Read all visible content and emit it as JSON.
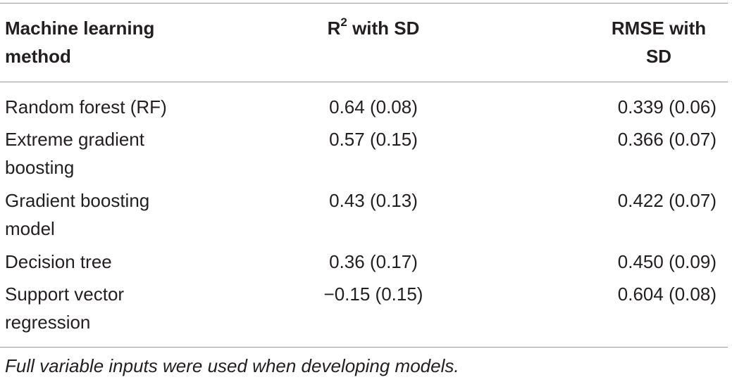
{
  "table": {
    "headers": {
      "method": [
        "Machine learning",
        "method"
      ],
      "r2_main": "R",
      "r2_sup": "2",
      "r2_rest": " with SD",
      "rmse": [
        "RMSE with",
        "SD"
      ]
    },
    "rows": [
      {
        "method": [
          "Random forest (RF)"
        ],
        "r2": "0.64 (0.08)",
        "rmse": "0.339 (0.06)"
      },
      {
        "method": [
          "Extreme gradient",
          "boosting"
        ],
        "r2": "0.57 (0.15)",
        "rmse": "0.366 (0.07)"
      },
      {
        "method": [
          "Gradient boosting",
          "model"
        ],
        "r2": "0.43 (0.13)",
        "rmse": "0.422 (0.07)"
      },
      {
        "method": [
          "Decision tree"
        ],
        "r2": "0.36 (0.17)",
        "rmse": "0.450 (0.09)"
      },
      {
        "method": [
          "Support vector",
          "regression"
        ],
        "r2": "−0.15 (0.15)",
        "rmse": "0.604 (0.08)"
      }
    ]
  },
  "footnote": "Full variable inputs were used when developing models."
}
